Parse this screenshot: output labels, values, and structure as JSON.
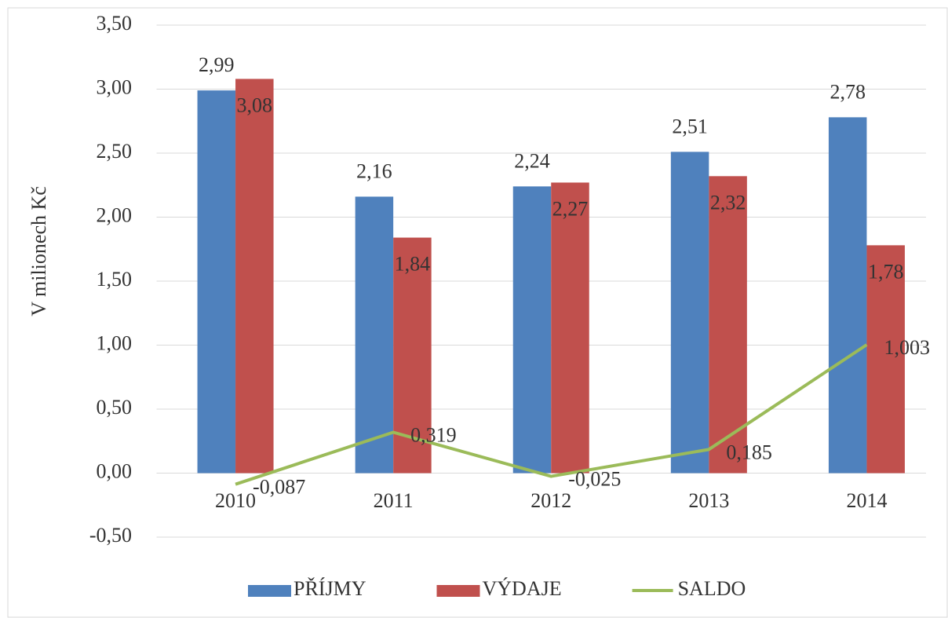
{
  "chart_data": {
    "type": "bar_line",
    "y_label": "V milionech Kč",
    "categories": [
      "2010",
      "2011",
      "2012",
      "2013",
      "2014"
    ],
    "series": [
      {
        "name": "PŘÍJMY",
        "type": "bar",
        "color": "#4f81bd",
        "values": [
          2.99,
          2.16,
          2.24,
          2.51,
          2.78
        ],
        "value_labels": [
          "2,99",
          "2,16",
          "2,24",
          "2,51",
          "2,78"
        ]
      },
      {
        "name": "VÝDAJE",
        "type": "bar",
        "color": "#c0504d",
        "values": [
          3.08,
          1.84,
          2.27,
          2.32,
          1.78
        ],
        "value_labels": [
          "3,08",
          "1,84",
          "2,27",
          "2,32",
          "1,78"
        ]
      },
      {
        "name": "SALDO",
        "type": "line",
        "color": "#9bbb59",
        "values": [
          -0.087,
          0.319,
          -0.025,
          0.185,
          1.003
        ],
        "value_labels": [
          "-0,087",
          "0,319",
          "-0,025",
          "0,185",
          "1,003"
        ]
      }
    ],
    "ylim": [
      -0.5,
      3.5
    ],
    "yticks": [
      {
        "value": -0.5,
        "label": "-0,50"
      },
      {
        "value": 0,
        "label": "0,00"
      },
      {
        "value": 0.5,
        "label": "0,50"
      },
      {
        "value": 1,
        "label": "1,00"
      },
      {
        "value": 1.5,
        "label": "1,50"
      },
      {
        "value": 2,
        "label": "2,00"
      },
      {
        "value": 2.5,
        "label": "2,50"
      },
      {
        "value": 3,
        "label": "3,00"
      },
      {
        "value": 3.5,
        "label": "3,50"
      }
    ],
    "grid": true,
    "legend": "bottom"
  }
}
